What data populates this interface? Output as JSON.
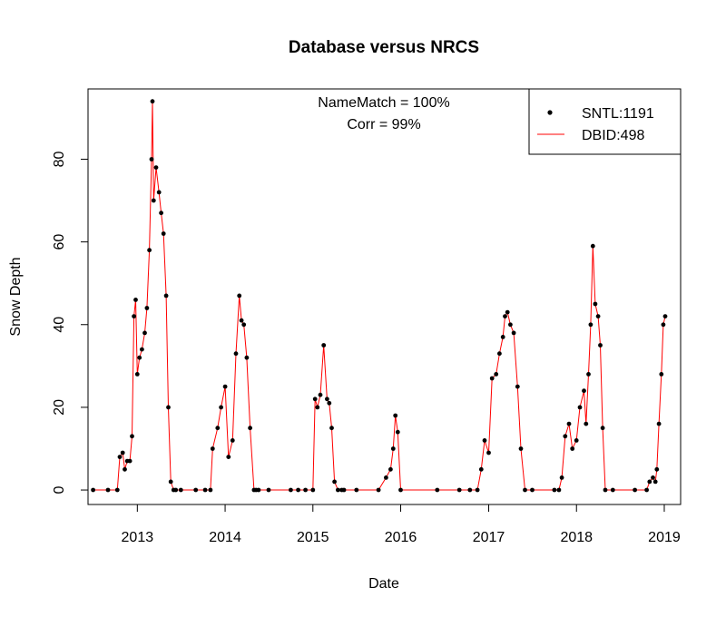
{
  "chart_data": {
    "type": "scatter",
    "title": "Database versus NRCS",
    "xlabel": "Date",
    "ylabel": "Snow Depth",
    "xlim": [
      "2012-06-10",
      "2019-03-10"
    ],
    "ylim": [
      -3.5,
      97
    ],
    "x_ticks": [
      "2013",
      "2014",
      "2015",
      "2016",
      "2017",
      "2018",
      "2019"
    ],
    "y_ticks": [
      0,
      20,
      40,
      60,
      80
    ],
    "annotations": [
      "NameMatch = 100%",
      "Corr = 99%"
    ],
    "legend": {
      "position": "top-right",
      "entries": [
        {
          "label": "SNTL:1191",
          "style": "points",
          "color": "#000000"
        },
        {
          "label": "DBID:498",
          "style": "line",
          "color": "#ff0000"
        }
      ]
    },
    "grid": false,
    "series": [
      {
        "name": "SNTL:1191",
        "style": "points",
        "color": "#000000",
        "x": [
          "2012-07-01",
          "2012-09-01",
          "2012-10-10",
          "2012-10-20",
          "2012-11-01",
          "2012-11-10",
          "2012-11-20",
          "2012-12-01",
          "2012-12-10",
          "2012-12-18",
          "2012-12-25",
          "2013-01-01",
          "2013-01-10",
          "2013-01-20",
          "2013-02-01",
          "2013-02-10",
          "2013-02-20",
          "2013-03-01",
          "2013-03-05",
          "2013-03-10",
          "2013-03-20",
          "2013-04-01",
          "2013-04-10",
          "2013-04-20",
          "2013-05-01",
          "2013-05-10",
          "2013-05-20",
          "2013-06-01",
          "2013-06-10",
          "2013-07-01",
          "2013-09-01",
          "2013-10-10",
          "2013-11-01",
          "2013-11-10",
          "2013-12-01",
          "2013-12-15",
          "2014-01-01",
          "2014-01-15",
          "2014-02-01",
          "2014-02-15",
          "2014-03-01",
          "2014-03-10",
          "2014-03-20",
          "2014-04-01",
          "2014-04-15",
          "2014-05-01",
          "2014-05-10",
          "2014-05-20",
          "2014-07-01",
          "2014-10-01",
          "2014-11-01",
          "2014-12-01",
          "2015-01-01",
          "2015-01-10",
          "2015-01-20",
          "2015-02-01",
          "2015-02-15",
          "2015-03-01",
          "2015-03-10",
          "2015-03-20",
          "2015-04-01",
          "2015-04-15",
          "2015-05-01",
          "2015-05-10",
          "2015-07-01",
          "2015-10-01",
          "2015-11-01",
          "2015-11-20",
          "2015-12-01",
          "2015-12-10",
          "2015-12-20",
          "2016-01-01",
          "2016-06-01",
          "2016-09-01",
          "2016-10-15",
          "2016-11-15",
          "2016-12-01",
          "2016-12-15",
          "2017-01-01",
          "2017-01-15",
          "2017-02-01",
          "2017-02-15",
          "2017-03-01",
          "2017-03-10",
          "2017-03-20",
          "2017-04-01",
          "2017-04-15",
          "2017-05-01",
          "2017-05-15",
          "2017-06-01",
          "2017-07-01",
          "2017-10-01",
          "2017-10-20",
          "2017-11-01",
          "2017-11-15",
          "2017-12-01",
          "2017-12-15",
          "2018-01-01",
          "2018-01-15",
          "2018-02-01",
          "2018-02-10",
          "2018-02-20",
          "2018-03-01",
          "2018-03-10",
          "2018-03-20",
          "2018-04-01",
          "2018-04-10",
          "2018-04-20",
          "2018-05-01",
          "2018-06-01",
          "2018-09-01",
          "2018-10-20",
          "2018-11-01",
          "2018-11-15",
          "2018-11-25",
          "2018-12-01",
          "2018-12-10",
          "2018-12-20",
          "2018-12-28",
          "2019-01-05"
        ],
        "y": [
          0,
          0,
          0,
          8,
          9,
          5,
          7,
          7,
          13,
          42,
          46,
          28,
          32,
          34,
          38,
          44,
          58,
          80,
          94,
          70,
          78,
          72,
          67,
          62,
          47,
          20,
          2,
          0,
          0,
          0,
          0,
          0,
          0,
          10,
          15,
          20,
          25,
          8,
          12,
          33,
          47,
          41,
          40,
          32,
          15,
          0,
          0,
          0,
          0,
          0,
          0,
          0,
          0,
          22,
          20,
          23,
          35,
          22,
          21,
          15,
          2,
          0,
          0,
          0,
          0,
          0,
          3,
          5,
          10,
          18,
          14,
          0,
          0,
          0,
          0,
          0,
          5,
          12,
          9,
          27,
          28,
          33,
          37,
          42,
          43,
          40,
          38,
          25,
          10,
          0,
          0,
          0,
          0,
          3,
          13,
          16,
          10,
          12,
          20,
          24,
          16,
          28,
          40,
          59,
          45,
          42,
          35,
          15,
          0,
          0,
          0,
          0,
          2,
          3,
          2,
          5,
          16,
          28,
          40,
          42
        ]
      },
      {
        "name": "DBID:498",
        "style": "line",
        "color": "#ff0000",
        "x": [
          "2012-07-01",
          "2012-09-01",
          "2012-10-10",
          "2012-10-20",
          "2012-11-01",
          "2012-11-10",
          "2012-11-20",
          "2012-12-01",
          "2012-12-10",
          "2012-12-18",
          "2012-12-25",
          "2013-01-01",
          "2013-01-10",
          "2013-01-20",
          "2013-02-01",
          "2013-02-10",
          "2013-02-20",
          "2013-03-01",
          "2013-03-05",
          "2013-03-10",
          "2013-03-20",
          "2013-04-01",
          "2013-04-10",
          "2013-04-20",
          "2013-05-01",
          "2013-05-10",
          "2013-05-20",
          "2013-06-01",
          "2013-06-10",
          "2013-07-01",
          "2013-09-01",
          "2013-10-10",
          "2013-11-01",
          "2013-11-10",
          "2013-12-01",
          "2013-12-15",
          "2014-01-01",
          "2014-01-15",
          "2014-02-01",
          "2014-02-15",
          "2014-03-01",
          "2014-03-10",
          "2014-03-20",
          "2014-04-01",
          "2014-04-15",
          "2014-05-01",
          "2014-05-10",
          "2014-05-20",
          "2014-07-01",
          "2014-10-01",
          "2014-11-01",
          "2014-12-01",
          "2015-01-01",
          "2015-01-10",
          "2015-01-20",
          "2015-02-01",
          "2015-02-15",
          "2015-03-01",
          "2015-03-10",
          "2015-03-20",
          "2015-04-01",
          "2015-04-15",
          "2015-05-01",
          "2015-05-10",
          "2015-07-01",
          "2015-10-01",
          "2015-11-01",
          "2015-11-20",
          "2015-12-01",
          "2015-12-10",
          "2015-12-20",
          "2016-01-01",
          "2016-06-01",
          "2016-09-01",
          "2016-10-15",
          "2016-11-15",
          "2016-12-01",
          "2016-12-15",
          "2017-01-01",
          "2017-01-15",
          "2017-02-01",
          "2017-02-15",
          "2017-03-01",
          "2017-03-10",
          "2017-03-20",
          "2017-04-01",
          "2017-04-15",
          "2017-05-01",
          "2017-05-15",
          "2017-06-01",
          "2017-07-01",
          "2017-10-01",
          "2017-10-20",
          "2017-11-01",
          "2017-11-15",
          "2017-12-01",
          "2017-12-15",
          "2018-01-01",
          "2018-01-15",
          "2018-02-01",
          "2018-02-10",
          "2018-02-20",
          "2018-03-01",
          "2018-03-10",
          "2018-03-20",
          "2018-04-01",
          "2018-04-10",
          "2018-04-20",
          "2018-05-01",
          "2018-06-01",
          "2018-09-01",
          "2018-10-20",
          "2018-11-01",
          "2018-11-15",
          "2018-11-25",
          "2018-12-01",
          "2018-12-10",
          "2018-12-20",
          "2018-12-28",
          "2019-01-05"
        ],
        "y": [
          0,
          0,
          0,
          8,
          9,
          5,
          7,
          7,
          13,
          42,
          46,
          28,
          32,
          34,
          38,
          44,
          58,
          80,
          94,
          70,
          78,
          72,
          67,
          62,
          47,
          20,
          2,
          0,
          0,
          0,
          0,
          0,
          0,
          10,
          15,
          20,
          25,
          8,
          12,
          33,
          47,
          41,
          40,
          32,
          15,
          0,
          0,
          0,
          0,
          0,
          0,
          0,
          0,
          22,
          20,
          23,
          35,
          22,
          21,
          15,
          2,
          0,
          0,
          0,
          0,
          0,
          3,
          5,
          10,
          18,
          14,
          0,
          0,
          0,
          0,
          0,
          5,
          12,
          9,
          27,
          28,
          33,
          37,
          42,
          43,
          40,
          38,
          25,
          10,
          0,
          0,
          0,
          0,
          3,
          13,
          16,
          10,
          12,
          20,
          24,
          16,
          28,
          40,
          59,
          45,
          42,
          35,
          15,
          0,
          0,
          0,
          0,
          2,
          3,
          2,
          5,
          16,
          28,
          40,
          42
        ]
      }
    ]
  }
}
